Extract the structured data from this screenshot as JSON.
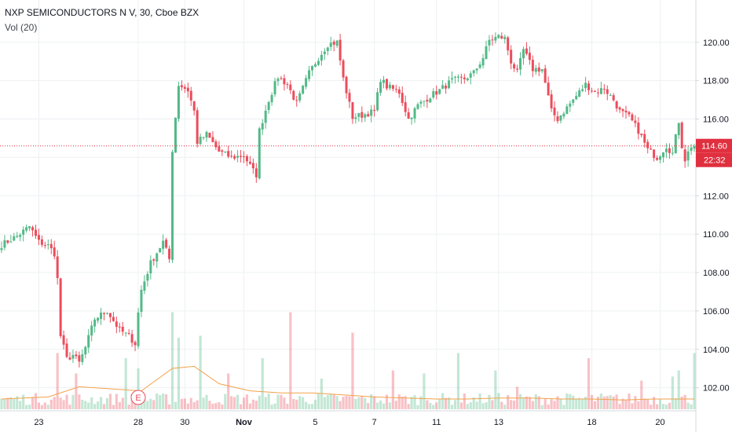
{
  "legend": {
    "title": "NXP SEMICONDUCTORS N V, 30, Cboe BZX",
    "volume_indicator": "Vol (20)"
  },
  "price_axis": {
    "last_price_label": "114.60",
    "countdown_label": "22:32"
  },
  "earnings_marker": {
    "label": "E"
  },
  "colors": {
    "up": "#53b987",
    "down": "#eb4d5c",
    "up_volume": "#53b987",
    "down_volume": "#eb4d5c",
    "volume_ma": "#f2a24a",
    "grid": "#eef0f3",
    "last_price_line": "#e0303f",
    "text": "#131722",
    "axis_border": "#d6d8de"
  },
  "chart_data": {
    "type": "candlestick",
    "title": "NXP SEMICONDUCTORS N V, 30, Cboe BZX",
    "timeframe": "30",
    "ylim": [
      100.8,
      122.2
    ],
    "y_ticks": [
      102.0,
      104.0,
      106.0,
      108.0,
      110.0,
      112.0,
      114.0,
      116.0,
      118.0,
      120.0
    ],
    "y_tick_labels": [
      "102.00",
      "104.00",
      "106.00",
      "108.00",
      "110.00",
      "112.00",
      "114.00",
      "116.00",
      "118.00",
      "120.00"
    ],
    "x_tick_labels": [
      "23",
      "28",
      "30",
      "Nov",
      "5",
      "7",
      "11",
      "13",
      "18",
      "20"
    ],
    "last_price": 114.6,
    "grid": true,
    "price_path": [
      [
        0,
        109.45
      ],
      [
        5,
        109.9
      ],
      [
        9,
        110.4
      ],
      [
        12,
        109.6
      ],
      [
        15,
        109.4
      ],
      [
        17,
        109.0
      ],
      [
        18,
        107.65
      ],
      [
        19,
        104.7
      ],
      [
        21,
        103.5
      ],
      [
        23,
        103.7
      ],
      [
        25,
        103.3
      ],
      [
        27,
        104.1
      ],
      [
        30,
        105.6
      ],
      [
        34,
        106.0
      ],
      [
        38,
        105.0
      ],
      [
        41,
        104.7
      ],
      [
        43,
        104.3
      ],
      [
        44,
        105.9
      ],
      [
        45,
        107.1
      ],
      [
        48,
        108.5
      ],
      [
        52,
        109.6
      ],
      [
        54,
        108.7
      ],
      [
        55,
        114.4
      ],
      [
        57,
        117.8
      ],
      [
        60,
        117.5
      ],
      [
        62,
        116.4
      ],
      [
        63,
        114.8
      ],
      [
        66,
        115.2
      ],
      [
        70,
        114.3
      ],
      [
        74,
        114.0
      ],
      [
        78,
        114.1
      ],
      [
        81,
        113.3
      ],
      [
        82,
        113.1
      ],
      [
        83,
        115.4
      ],
      [
        86,
        117.0
      ],
      [
        89,
        118.2
      ],
      [
        92,
        117.8
      ],
      [
        95,
        116.8
      ],
      [
        99,
        118.4
      ],
      [
        102,
        119.2
      ],
      [
        105,
        119.9
      ],
      [
        108,
        120.0
      ],
      [
        110,
        118.1
      ],
      [
        113,
        116.1
      ],
      [
        116,
        116.2
      ],
      [
        120,
        116.4
      ],
      [
        122,
        118.1
      ],
      [
        124,
        117.7
      ],
      [
        128,
        117.4
      ],
      [
        131,
        116.0
      ],
      [
        134,
        116.7
      ],
      [
        138,
        117.2
      ],
      [
        141,
        117.5
      ],
      [
        145,
        118.0
      ],
      [
        149,
        118.1
      ],
      [
        152,
        118.4
      ],
      [
        155,
        119.2
      ],
      [
        157,
        120.1
      ],
      [
        160,
        120.3
      ],
      [
        162,
        120.2
      ],
      [
        164,
        119.0
      ],
      [
        166,
        118.4
      ],
      [
        168,
        119.6
      ],
      [
        171,
        118.6
      ],
      [
        174,
        118.6
      ],
      [
        177,
        116.4
      ],
      [
        179,
        116.0
      ],
      [
        182,
        116.6
      ],
      [
        185,
        117.2
      ],
      [
        188,
        117.8
      ],
      [
        191,
        117.4
      ],
      [
        194,
        117.6
      ],
      [
        197,
        117.0
      ],
      [
        199,
        116.4
      ],
      [
        202,
        116.1
      ],
      [
        205,
        115.4
      ],
      [
        208,
        114.4
      ],
      [
        211,
        114.0
      ],
      [
        214,
        114.6
      ],
      [
        216,
        114.2
      ],
      [
        218,
        115.9
      ],
      [
        219,
        114.6
      ],
      [
        220,
        113.9
      ],
      [
        222,
        114.6
      ]
    ],
    "volume_spikes": [
      [
        18,
        0.55
      ],
      [
        24,
        0.35
      ],
      [
        40,
        0.5
      ],
      [
        44,
        0.4
      ],
      [
        55,
        0.95
      ],
      [
        57,
        0.7
      ],
      [
        64,
        0.72
      ],
      [
        73,
        0.35
      ],
      [
        84,
        0.5
      ],
      [
        93,
        0.95
      ],
      [
        103,
        0.3
      ],
      [
        113,
        0.75
      ],
      [
        126,
        0.38
      ],
      [
        136,
        0.35
      ],
      [
        147,
        0.55
      ],
      [
        159,
        0.38
      ],
      [
        166,
        0.22
      ],
      [
        189,
        0.5
      ],
      [
        206,
        0.28
      ],
      [
        216,
        0.32
      ],
      [
        218,
        0.38
      ],
      [
        223,
        0.55
      ]
    ],
    "volume_ma_path": [
      [
        0,
        0.1
      ],
      [
        15,
        0.12
      ],
      [
        25,
        0.22
      ],
      [
        35,
        0.2
      ],
      [
        45,
        0.18
      ],
      [
        55,
        0.4
      ],
      [
        62,
        0.42
      ],
      [
        70,
        0.25
      ],
      [
        80,
        0.18
      ],
      [
        90,
        0.16
      ],
      [
        100,
        0.16
      ],
      [
        110,
        0.14
      ],
      [
        120,
        0.12
      ],
      [
        130,
        0.11
      ],
      [
        140,
        0.1
      ],
      [
        150,
        0.1
      ],
      [
        160,
        0.11
      ],
      [
        170,
        0.11
      ],
      [
        180,
        0.1
      ],
      [
        190,
        0.1
      ],
      [
        200,
        0.09
      ],
      [
        210,
        0.1
      ],
      [
        223,
        0.1
      ]
    ],
    "earnings_bar_index": 44,
    "x_tick_bar_index": [
      12,
      44,
      59,
      78,
      101,
      120,
      140,
      160,
      190,
      212
    ]
  }
}
